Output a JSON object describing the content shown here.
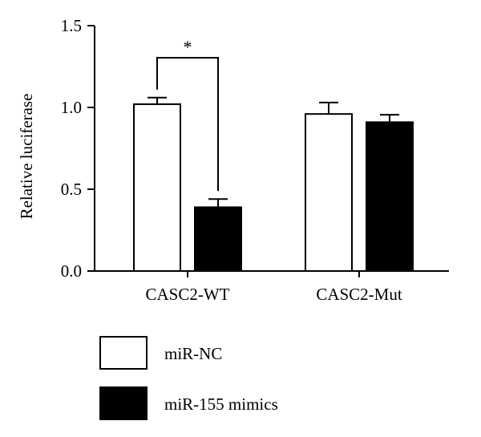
{
  "chart_data": {
    "type": "bar",
    "title": "",
    "xlabel": "",
    "ylabel": "Relative luciferase",
    "ylim": [
      0,
      1.5
    ],
    "yticks": [
      0.0,
      0.5,
      1.0,
      1.5
    ],
    "ytick_labels": [
      "0.0",
      "0.5",
      "1.0",
      "1.5"
    ],
    "categories": [
      "CASC2-WT",
      "CASC2-Mut"
    ],
    "series": [
      {
        "name": "miR-NC",
        "values": [
          1.02,
          0.96
        ],
        "errors": [
          0.04,
          0.07
        ],
        "color": "#ffffff"
      },
      {
        "name": "miR-155 mimics",
        "values": [
          0.39,
          0.91
        ],
        "errors": [
          0.05,
          0.045
        ],
        "color": "#000000"
      }
    ],
    "annotations": [
      {
        "text": "*",
        "between_category": "CASC2-WT"
      }
    ],
    "legend_placement": "bottom-left",
    "grid": false
  }
}
